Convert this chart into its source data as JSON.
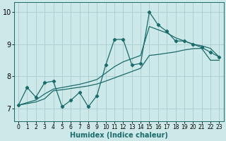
{
  "xlabel": "Humidex (Indice chaleur)",
  "ylabel": "",
  "xlim": [
    -0.5,
    23.5
  ],
  "ylim": [
    6.6,
    10.3
  ],
  "bg_color": "#cde8e8",
  "grid_color": "#aacccc",
  "line_color": "#1a6b6b",
  "line1_x": [
    0,
    1,
    2,
    3,
    4,
    5,
    6,
    7,
    8,
    9,
    10,
    11,
    12,
    13,
    14,
    15,
    16,
    17,
    18,
    19,
    20,
    21,
    22,
    23
  ],
  "line1_y": [
    7.1,
    7.65,
    7.35,
    7.8,
    7.85,
    7.05,
    7.25,
    7.5,
    7.05,
    7.4,
    8.35,
    9.15,
    9.15,
    8.35,
    8.4,
    10.0,
    9.6,
    9.4,
    9.1,
    9.1,
    9.0,
    8.9,
    8.75,
    8.6
  ],
  "line2_x": [
    0,
    1,
    2,
    3,
    4,
    5,
    6,
    7,
    8,
    9,
    10,
    11,
    12,
    13,
    14,
    15,
    16,
    17,
    18,
    19,
    20,
    21,
    22,
    23
  ],
  "line2_y": [
    7.1,
    7.18,
    7.26,
    7.45,
    7.6,
    7.65,
    7.7,
    7.75,
    7.82,
    7.9,
    8.1,
    8.3,
    8.45,
    8.55,
    8.65,
    9.55,
    9.45,
    9.35,
    9.2,
    9.1,
    9.0,
    8.95,
    8.87,
    8.6
  ],
  "line3_x": [
    0,
    1,
    2,
    3,
    4,
    5,
    6,
    7,
    8,
    9,
    10,
    11,
    12,
    13,
    14,
    15,
    16,
    17,
    18,
    19,
    20,
    21,
    22,
    23
  ],
  "line3_y": [
    7.1,
    7.15,
    7.2,
    7.3,
    7.55,
    7.58,
    7.62,
    7.66,
    7.7,
    7.76,
    7.85,
    7.95,
    8.05,
    8.15,
    8.25,
    8.65,
    8.68,
    8.72,
    8.76,
    8.82,
    8.86,
    8.87,
    8.5,
    8.5
  ],
  "xticks": [
    0,
    1,
    2,
    3,
    4,
    5,
    6,
    7,
    8,
    9,
    10,
    11,
    12,
    13,
    14,
    15,
    16,
    17,
    18,
    19,
    20,
    21,
    22,
    23
  ],
  "yticks": [
    7,
    8,
    9,
    10
  ],
  "tick_fontsize_x": 5.5,
  "tick_fontsize_y": 7.0,
  "xlabel_fontsize": 7.0
}
